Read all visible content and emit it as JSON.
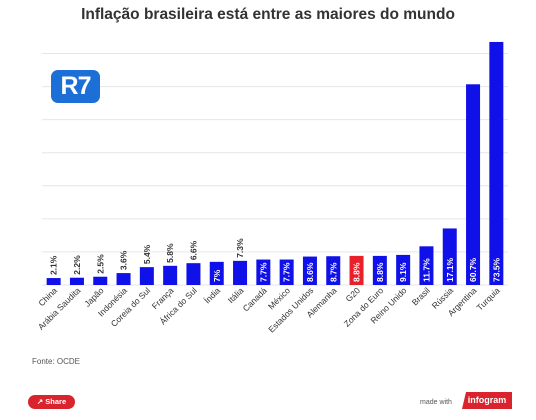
{
  "colors": {
    "bar": "#1010e8",
    "highlight": "#e8202a",
    "grid": "#e6e6e6",
    "text": "#333333"
  },
  "logo_text": "R7",
  "source": "Fonte: OCDE",
  "share_label": "Share",
  "made_with": "made with",
  "brand": "infogram",
  "icons": {
    "share": "share-icon"
  },
  "chart_data": {
    "type": "bar",
    "title": "Inflação brasileira está entre as maiores do mundo",
    "xlabel": "",
    "ylabel": "",
    "ylim": [
      0,
      75
    ],
    "grid": true,
    "categories": [
      "China",
      "Arábia Saudita",
      "Japão",
      "Indonésia",
      "Coreia do Sul",
      "França",
      "África do Sul",
      "Índia",
      "Itália",
      "Canadá",
      "México",
      "Estados Unidos",
      "Alemanha",
      "G20",
      "Zona do Euro",
      "Reino Unido",
      "Brasil",
      "Rússia",
      "Argentina",
      "Turquia"
    ],
    "values": [
      2.1,
      2.2,
      2.5,
      3.6,
      5.4,
      5.8,
      6.6,
      7,
      7.3,
      7.7,
      7.7,
      8.6,
      8.7,
      8.8,
      8.8,
      9.1,
      11.7,
      17.1,
      60.7,
      73.5
    ],
    "data_labels": [
      "2.1%",
      "2.2%",
      "2.5%",
      "3.6%",
      "5.4%",
      "5.8%",
      "6.6%",
      "7%",
      "7.3%",
      "7.7%",
      "7.7%",
      "8.6%",
      "8.7%",
      "8.8%",
      "8.8%",
      "9.1%",
      "11.7%",
      "17.1%",
      "60.7%",
      "73.5%"
    ],
    "highlight_category": "G20"
  }
}
